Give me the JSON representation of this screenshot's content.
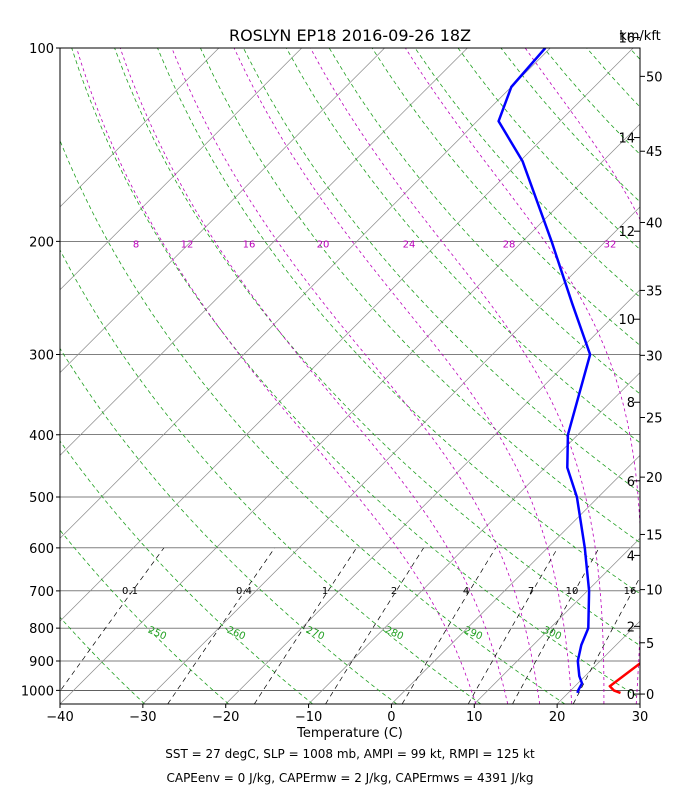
{
  "chart_data": {
    "type": "line",
    "title": "ROSLYN EP18 2016-09-26 18Z",
    "xlabel": "Temperature (C)",
    "ylabel": "",
    "y_right_label": "km/kft",
    "xlim": [
      -40,
      30
    ],
    "pressure_range_hPa": [
      1050,
      100
    ],
    "x_ticks": [
      "-40",
      "-30",
      "-20",
      "-10",
      "0",
      "10",
      "20",
      "30"
    ],
    "p_ticks": [
      "100",
      "200",
      "300",
      "400",
      "500",
      "600",
      "700",
      "800",
      "900",
      "1000"
    ],
    "km_ticks": [
      "0",
      "2",
      "4",
      "6",
      "8",
      "10",
      "12",
      "14",
      "16"
    ],
    "kft_ticks": [
      "0",
      "5",
      "10",
      "15",
      "20",
      "25",
      "30",
      "35",
      "40",
      "45",
      "50"
    ],
    "isotherms_C": [
      -100,
      -90,
      -80,
      -70,
      -60,
      -50,
      -40,
      -30,
      -20,
      -10,
      0,
      10,
      20,
      30,
      40,
      50
    ],
    "dry_adiabats_K": [
      240,
      250,
      260,
      270,
      280,
      290,
      300,
      310,
      320,
      330,
      340,
      350,
      360,
      370,
      380,
      390,
      400,
      410,
      420,
      430
    ],
    "dry_adiabat_labels": [
      "250",
      "260",
      "270",
      "280",
      "290",
      "300"
    ],
    "moist_adiabats_thetaw_C": [
      8,
      12,
      16,
      20,
      24,
      28,
      32
    ],
    "mixing_ratio_lines_gkg": [
      "0.1",
      "0.4",
      "1",
      "2",
      "4",
      "7",
      "10",
      "16"
    ],
    "series": [
      {
        "name": "Temperature",
        "color": "#ff0000",
        "points": [
          [
            1009,
            26.3
          ],
          [
            1000,
            25.2
          ],
          [
            985,
            24.2
          ],
          [
            950,
            24.6
          ],
          [
            900,
            25.2
          ],
          [
            850,
            25.1
          ],
          [
            800,
            24.2
          ],
          [
            700,
            20.6
          ],
          [
            600,
            17.0
          ],
          [
            500,
            13.4
          ],
          [
            400,
            6.6
          ],
          [
            300,
            -3.5
          ],
          [
            250,
            -11.6
          ],
          [
            200,
            -21.3
          ],
          [
            150,
            -32.8
          ],
          [
            130,
            -38.5
          ],
          [
            115,
            -41.0
          ],
          [
            100,
            -41.6
          ]
        ]
      },
      {
        "name": "Dew point",
        "color": "#0000ff",
        "points": [
          [
            1009,
            21.1
          ],
          [
            1000,
            20.9
          ],
          [
            975,
            20.5
          ],
          [
            950,
            19.3
          ],
          [
            900,
            17.3
          ],
          [
            850,
            15.8
          ],
          [
            800,
            14.6
          ],
          [
            700,
            10.2
          ],
          [
            600,
            4.5
          ],
          [
            500,
            -2.6
          ],
          [
            450,
            -7.3
          ],
          [
            400,
            -11.2
          ],
          [
            300,
            -18.2
          ],
          [
            250,
            -26.5
          ],
          [
            200,
            -36.5
          ],
          [
            150,
            -49.7
          ],
          [
            130,
            -57.4
          ],
          [
            115,
            -60.0
          ],
          [
            100,
            -60.6
          ]
        ]
      }
    ],
    "footer_lines": [
      "SST = 27 degC, SLP = 1008 mb, AMPI = 99 kt, RMPI = 125 kt",
      "CAPEenv = 0 J/kg, CAPErmw = 2 J/kg, CAPErmws = 4391 J/kg"
    ]
  },
  "colors": {
    "temperature": "#ff0000",
    "dewpoint": "#0000ff",
    "isotherm": "#8a8a8a",
    "dry_adiabat": "#1f9f1f",
    "moist_adiabat": "#bb00bb",
    "mixing_ratio": "#000000"
  }
}
